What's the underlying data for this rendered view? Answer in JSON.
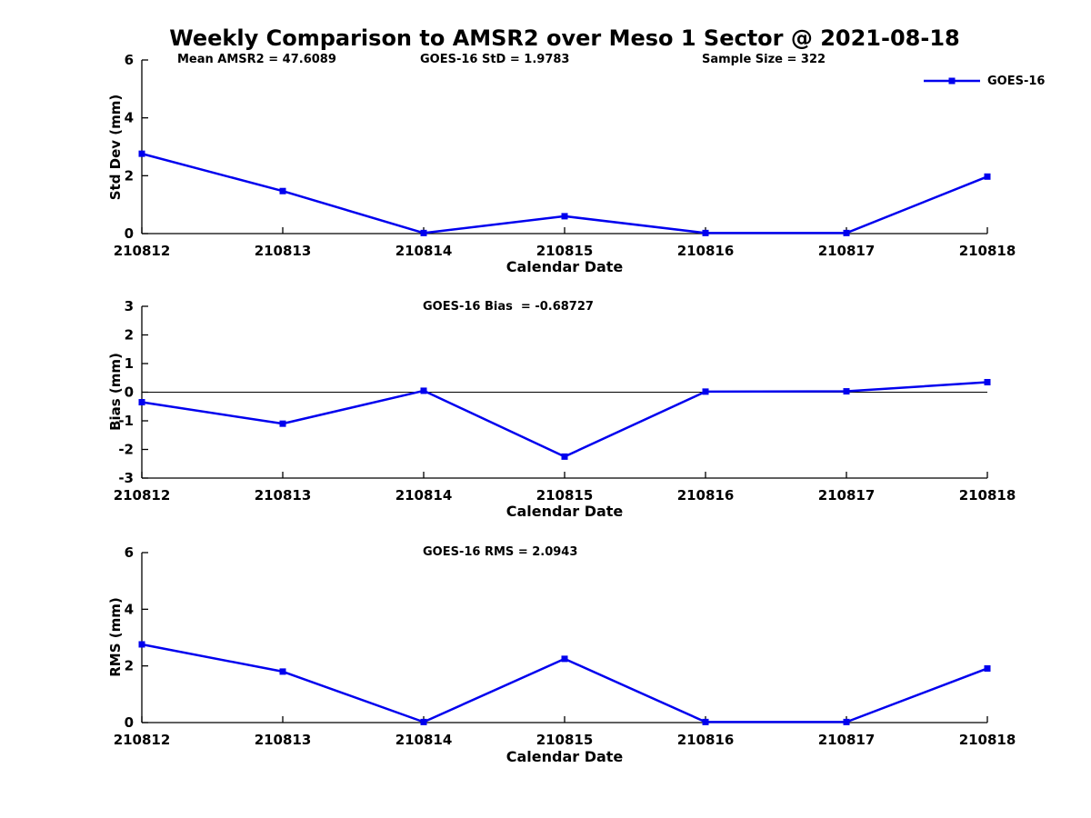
{
  "figure": {
    "title": "Weekly Comparison to AMSR2 over Meso 1 Sector @ 2021-08-18"
  },
  "legend": {
    "label": "GOES-16",
    "position": "top-right"
  },
  "colors": {
    "series_line": "#0000ee",
    "axis": "#000000",
    "zero_line": "#000000",
    "background": "#ffffff"
  },
  "chart_data": [
    {
      "type": "line",
      "title": "",
      "header_annotations": [
        "Mean AMSR2 = 47.6089",
        "GOES-16 StD = 1.9783",
        "Sample Size = 322"
      ],
      "xlabel": "Calendar Date",
      "ylabel": "Std Dev (mm)",
      "categories": [
        "210812",
        "210813",
        "210814",
        "210815",
        "210816",
        "210817",
        "210818"
      ],
      "series": [
        {
          "name": "GOES-16",
          "values": [
            2.76,
            1.47,
            0.02,
            0.6,
            0.02,
            0.02,
            1.97
          ]
        }
      ],
      "ylim": [
        0,
        6
      ],
      "yticks": [
        0,
        2,
        4,
        6
      ],
      "grid": false,
      "marker": "square",
      "legend_visible": true
    },
    {
      "type": "line",
      "title": "GOES-16 Bias  = -0.68727",
      "xlabel": "Calendar Date",
      "ylabel": "Bias (mm)",
      "categories": [
        "210812",
        "210813",
        "210814",
        "210815",
        "210816",
        "210817",
        "210818"
      ],
      "series": [
        {
          "name": "GOES-16",
          "values": [
            -0.35,
            -1.1,
            0.05,
            -2.25,
            0.02,
            0.03,
            0.35
          ]
        }
      ],
      "ylim": [
        -3,
        3
      ],
      "yticks": [
        -3,
        -2,
        -1,
        0,
        1,
        2,
        3
      ],
      "zero_line": true,
      "grid": false,
      "marker": "square",
      "legend_visible": false
    },
    {
      "type": "line",
      "title": "GOES-16 RMS = 2.0943",
      "xlabel": "Calendar Date",
      "ylabel": "RMS (mm)",
      "categories": [
        "210812",
        "210813",
        "210814",
        "210815",
        "210816",
        "210817",
        "210818"
      ],
      "series": [
        {
          "name": "GOES-16",
          "values": [
            2.76,
            1.8,
            0.02,
            2.25,
            0.02,
            0.02,
            1.91
          ]
        }
      ],
      "ylim": [
        0,
        6
      ],
      "yticks": [
        0,
        2,
        4,
        6
      ],
      "grid": false,
      "marker": "square",
      "legend_visible": false
    }
  ]
}
